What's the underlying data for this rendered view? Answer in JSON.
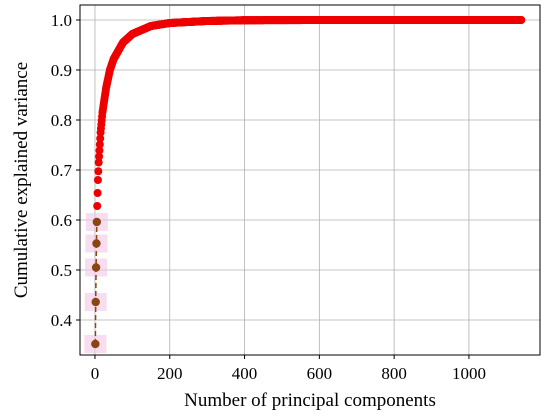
{
  "chart_data": {
    "type": "scatter",
    "xlabel": "Number of principal components",
    "ylabel": "Cumulative explained variance",
    "xlim": [
      -40,
      1190
    ],
    "ylim": [
      0.33,
      1.03
    ],
    "xticks": [
      0,
      200,
      400,
      600,
      800,
      1000
    ],
    "yticks": [
      0.4,
      0.5,
      0.6,
      0.7,
      0.8,
      0.9,
      1.0
    ],
    "xtick_labels": [
      "0",
      "200",
      "400",
      "600",
      "800",
      "1000"
    ],
    "ytick_labels": [
      "0.4",
      "0.5",
      "0.6",
      "0.7",
      "0.8",
      "0.9",
      "1.0"
    ],
    "grid": true,
    "n_components": 1140,
    "highlight_points": [
      {
        "x": 1,
        "y": 0.352
      },
      {
        "x": 2,
        "y": 0.436
      },
      {
        "x": 3,
        "y": 0.505
      },
      {
        "x": 4,
        "y": 0.553
      },
      {
        "x": 5,
        "y": 0.596
      }
    ],
    "curve_anchor_points": [
      {
        "x": 5,
        "y": 0.596
      },
      {
        "x": 6,
        "y": 0.628
      },
      {
        "x": 8,
        "y": 0.68
      },
      {
        "x": 10,
        "y": 0.715
      },
      {
        "x": 15,
        "y": 0.775
      },
      {
        "x": 20,
        "y": 0.815
      },
      {
        "x": 30,
        "y": 0.865
      },
      {
        "x": 40,
        "y": 0.9
      },
      {
        "x": 50,
        "y": 0.922
      },
      {
        "x": 75,
        "y": 0.955
      },
      {
        "x": 100,
        "y": 0.972
      },
      {
        "x": 150,
        "y": 0.988
      },
      {
        "x": 200,
        "y": 0.994
      },
      {
        "x": 300,
        "y": 0.998
      },
      {
        "x": 400,
        "y": 0.9995
      },
      {
        "x": 600,
        "y": 1.0
      },
      {
        "x": 1140,
        "y": 1.0
      }
    ],
    "colors": {
      "points": "#ee0000",
      "highlight_points": "#8b4513",
      "dashed_line": "#8b4513",
      "highlight_glow": "#f4c6e6",
      "grid": "#b0b0b0"
    }
  }
}
